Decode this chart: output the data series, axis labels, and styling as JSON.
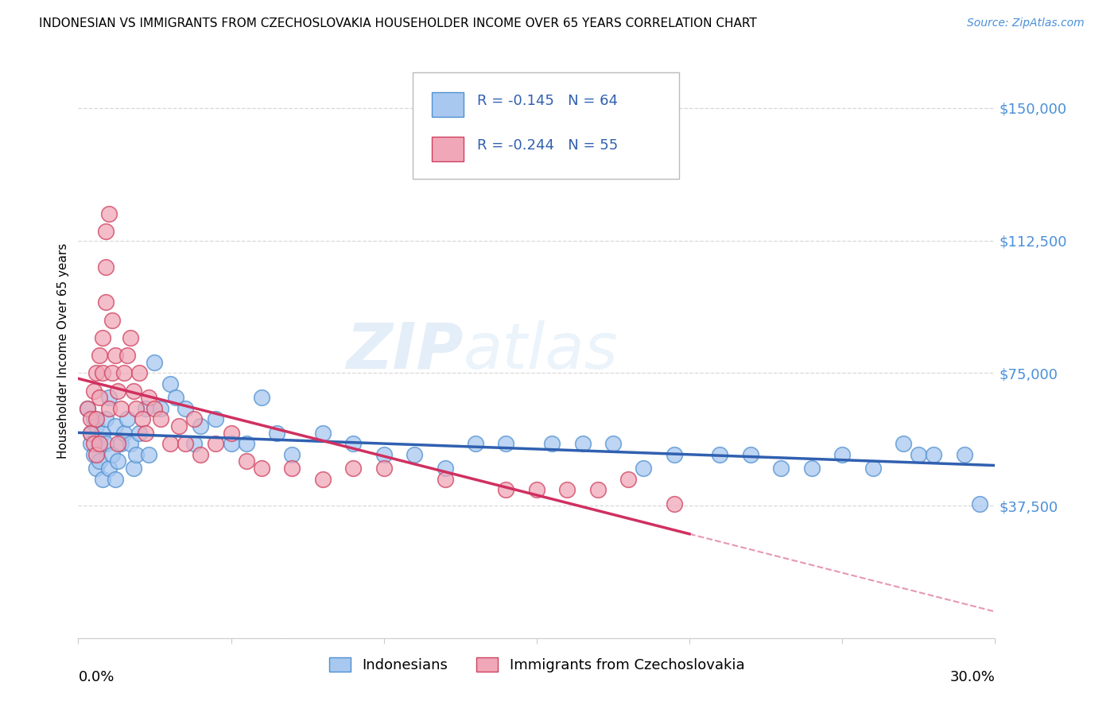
{
  "title": "INDONESIAN VS IMMIGRANTS FROM CZECHOSLOVAKIA HOUSEHOLDER INCOME OVER 65 YEARS CORRELATION CHART",
  "source": "Source: ZipAtlas.com",
  "ylabel": "Householder Income Over 65 years",
  "xmin": 0.0,
  "xmax": 0.3,
  "ymin": 0,
  "ymax": 162500,
  "yticks": [
    0,
    37500,
    75000,
    112500,
    150000
  ],
  "ytick_labels": [
    "",
    "$37,500",
    "$75,000",
    "$112,500",
    "$150,000"
  ],
  "grid_color": "#d8d8d8",
  "background_color": "#ffffff",
  "watermark_zip": "ZIP",
  "watermark_atlas": "atlas",
  "blue_scatter_color": "#a8c8f0",
  "blue_edge_color": "#5090d0",
  "pink_scatter_color": "#f0a8b8",
  "pink_edge_color": "#d04060",
  "blue_line_color": "#3060b0",
  "pink_line_color": "#d03060",
  "label1": "Indonesians",
  "label2": "Immigrants from Czechoslovakia",
  "legend_R1": "-0.145",
  "legend_N1": "64",
  "legend_R2": "-0.244",
  "legend_N2": "55",
  "ytick_color": "#4a90d9",
  "blue_scatter_x": [
    0.003,
    0.004,
    0.004,
    0.005,
    0.005,
    0.006,
    0.006,
    0.007,
    0.007,
    0.008,
    0.008,
    0.009,
    0.009,
    0.01,
    0.01,
    0.011,
    0.012,
    0.012,
    0.013,
    0.014,
    0.015,
    0.016,
    0.017,
    0.018,
    0.019,
    0.02,
    0.022,
    0.023,
    0.025,
    0.027,
    0.03,
    0.032,
    0.035,
    0.038,
    0.04,
    0.045,
    0.05,
    0.055,
    0.06,
    0.065,
    0.07,
    0.08,
    0.09,
    0.1,
    0.11,
    0.12,
    0.13,
    0.14,
    0.155,
    0.165,
    0.175,
    0.185,
    0.195,
    0.21,
    0.22,
    0.23,
    0.24,
    0.25,
    0.26,
    0.27,
    0.275,
    0.28,
    0.29,
    0.295
  ],
  "blue_scatter_y": [
    65000,
    58000,
    55000,
    62000,
    52000,
    60000,
    48000,
    55000,
    50000,
    58000,
    45000,
    62000,
    55000,
    68000,
    48000,
    52000,
    60000,
    45000,
    50000,
    55000,
    58000,
    62000,
    55000,
    48000,
    52000,
    58000,
    65000,
    52000,
    78000,
    65000,
    72000,
    68000,
    65000,
    55000,
    60000,
    62000,
    55000,
    55000,
    68000,
    58000,
    52000,
    58000,
    55000,
    52000,
    52000,
    48000,
    55000,
    55000,
    55000,
    55000,
    55000,
    48000,
    52000,
    52000,
    52000,
    48000,
    48000,
    52000,
    48000,
    55000,
    52000,
    52000,
    52000,
    38000
  ],
  "pink_scatter_x": [
    0.003,
    0.004,
    0.004,
    0.005,
    0.005,
    0.006,
    0.006,
    0.006,
    0.007,
    0.007,
    0.007,
    0.008,
    0.008,
    0.009,
    0.009,
    0.009,
    0.01,
    0.01,
    0.011,
    0.011,
    0.012,
    0.013,
    0.013,
    0.014,
    0.015,
    0.016,
    0.017,
    0.018,
    0.019,
    0.02,
    0.021,
    0.022,
    0.023,
    0.025,
    0.027,
    0.03,
    0.033,
    0.035,
    0.038,
    0.04,
    0.045,
    0.05,
    0.055,
    0.06,
    0.07,
    0.08,
    0.09,
    0.1,
    0.12,
    0.14,
    0.15,
    0.16,
    0.17,
    0.18,
    0.195
  ],
  "pink_scatter_y": [
    65000,
    62000,
    58000,
    70000,
    55000,
    75000,
    62000,
    52000,
    80000,
    68000,
    55000,
    85000,
    75000,
    95000,
    105000,
    115000,
    120000,
    65000,
    90000,
    75000,
    80000,
    70000,
    55000,
    65000,
    75000,
    80000,
    85000,
    70000,
    65000,
    75000,
    62000,
    58000,
    68000,
    65000,
    62000,
    55000,
    60000,
    55000,
    62000,
    52000,
    55000,
    58000,
    50000,
    48000,
    48000,
    45000,
    48000,
    48000,
    45000,
    42000,
    42000,
    42000,
    42000,
    45000,
    38000
  ]
}
